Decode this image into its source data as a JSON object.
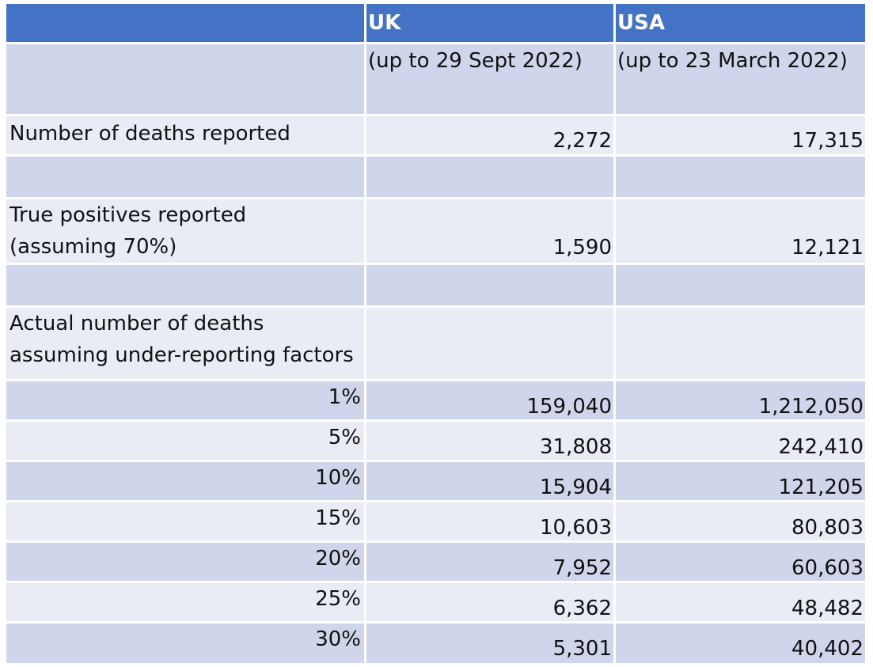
{
  "header": {
    "col0": "",
    "col1": "UK",
    "col2": "USA"
  },
  "subheader": {
    "col1": "(up to 29 Sept 2022)",
    "col2": "(up to 23 March 2022)"
  },
  "deaths_reported": {
    "label": "Number of deaths reported",
    "uk": "2,272",
    "usa": "17,315"
  },
  "true_positives": {
    "label_line1": "True positives reported",
    "label_line2": "(assuming 70%)",
    "uk": "1,590",
    "usa": "12,121"
  },
  "actual_deaths": {
    "label_line1": "Actual number of deaths",
    "label_line2": "assuming under-reporting factors"
  },
  "factors": [
    {
      "factor": "1%",
      "uk": "159,040",
      "usa": "1,212,050"
    },
    {
      "factor": "5%",
      "uk": "31,808",
      "usa": "242,410"
    },
    {
      "factor": "10%",
      "uk": "15,904",
      "usa": "121,205"
    },
    {
      "factor": "15%",
      "uk": "10,603",
      "usa": "80,803"
    },
    {
      "factor": "20%",
      "uk": "7,952",
      "usa": "60,603"
    },
    {
      "factor": "25%",
      "uk": "6,362",
      "usa": "48,482"
    },
    {
      "factor": "30%",
      "uk": "5,301",
      "usa": "40,402"
    }
  ],
  "colors": {
    "header": "#4472c4",
    "band_dark": "#cfd5ea",
    "band_light": "#e9ebf5"
  }
}
